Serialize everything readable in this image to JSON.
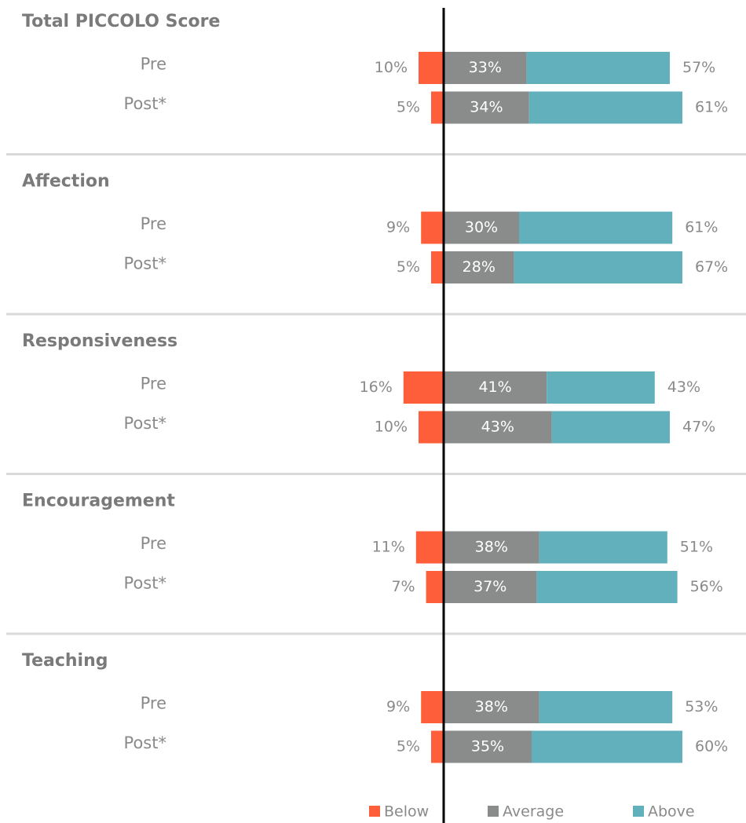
{
  "chart_data": [
    {
      "type": "diverging_bar",
      "title": "Total PICCOLO Score",
      "categories": [
        "Pre",
        "Post*"
      ],
      "series": [
        {
          "name": "Below",
          "color": "#ff5e3a",
          "values": [
            10,
            5
          ],
          "value_labels": [
            "10%",
            "5%"
          ]
        },
        {
          "name": "Average",
          "color": "#8a8c8c",
          "values": [
            33,
            34
          ],
          "value_labels": [
            "33%",
            "34%"
          ]
        },
        {
          "name": "Above",
          "color": "#62b0bc",
          "values": [
            57,
            61
          ],
          "value_labels": [
            "57%",
            "61%"
          ]
        }
      ]
    },
    {
      "type": "diverging_bar",
      "title": "Affection",
      "categories": [
        "Pre",
        "Post*"
      ],
      "series": [
        {
          "name": "Below",
          "color": "#ff5e3a",
          "values": [
            9,
            5
          ],
          "value_labels": [
            "9%",
            "5%"
          ]
        },
        {
          "name": "Average",
          "color": "#8a8c8c",
          "values": [
            30,
            28
          ],
          "value_labels": [
            "30%",
            "28%"
          ]
        },
        {
          "name": "Above",
          "color": "#62b0bc",
          "values": [
            61,
            67
          ],
          "value_labels": [
            "61%",
            "67%"
          ]
        }
      ]
    },
    {
      "type": "diverging_bar",
      "title": "Responsiveness",
      "categories": [
        "Pre",
        "Post*"
      ],
      "series": [
        {
          "name": "Below",
          "color": "#ff5e3a",
          "values": [
            16,
            10
          ],
          "value_labels": [
            "16%",
            "10%"
          ]
        },
        {
          "name": "Average",
          "color": "#8a8c8c",
          "values": [
            41,
            43
          ],
          "value_labels": [
            "41%",
            "43%"
          ]
        },
        {
          "name": "Above",
          "color": "#62b0bc",
          "values": [
            43,
            47
          ],
          "value_labels": [
            "43%",
            "47%"
          ]
        }
      ]
    },
    {
      "type": "diverging_bar",
      "title": "Encouragement",
      "categories": [
        "Pre",
        "Post*"
      ],
      "series": [
        {
          "name": "Below",
          "color": "#ff5e3a",
          "values": [
            11,
            7
          ],
          "value_labels": [
            "11%",
            "7%"
          ]
        },
        {
          "name": "Average",
          "color": "#8a8c8c",
          "values": [
            38,
            37
          ],
          "value_labels": [
            "38%",
            "37%"
          ]
        },
        {
          "name": "Above",
          "color": "#62b0bc",
          "values": [
            51,
            56
          ],
          "value_labels": [
            "51%",
            "56%"
          ]
        }
      ]
    },
    {
      "type": "diverging_bar",
      "title": "Teaching",
      "categories": [
        "Pre",
        "Post*"
      ],
      "series": [
        {
          "name": "Below",
          "color": "#ff5e3a",
          "values": [
            9,
            5
          ],
          "value_labels": [
            "9%",
            "5%"
          ]
        },
        {
          "name": "Average",
          "color": "#8a8c8c",
          "values": [
            38,
            35
          ],
          "value_labels": [
            "38%",
            "35%"
          ]
        },
        {
          "name": "Above",
          "color": "#62b0bc",
          "values": [
            53,
            60
          ],
          "value_labels": [
            "53%",
            "60%"
          ]
        }
      ]
    }
  ]
}
